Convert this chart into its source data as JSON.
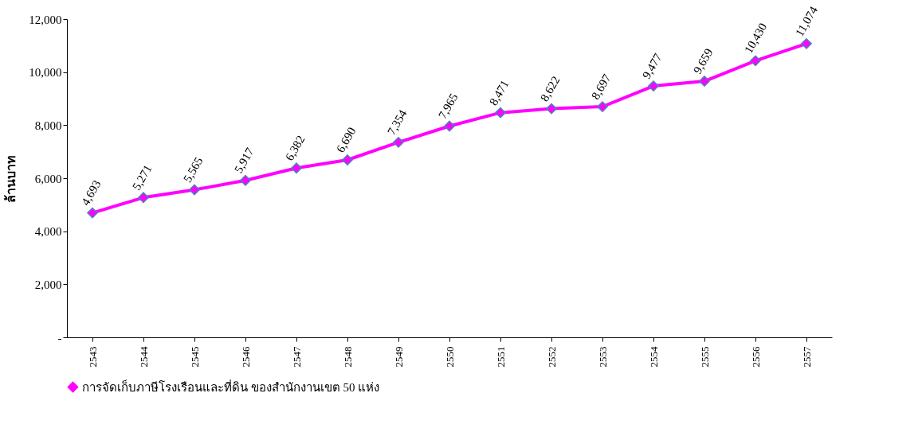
{
  "chart_data": {
    "type": "line",
    "ylabel": "ล้านบาท",
    "categories": [
      "2543",
      "2544",
      "2545",
      "2546",
      "2547",
      "2548",
      "2549",
      "2550",
      "2551",
      "2552",
      "2553",
      "2554",
      "2555",
      "2556",
      "2557"
    ],
    "series": [
      {
        "name": "การจัดเก็บภาษีโรงเรือนและที่ดิน ของสำนักงานเขต 50 แห่ง",
        "color": "#ff00ff",
        "values": [
          4693,
          5271,
          5565,
          5917,
          6382,
          6690,
          7354,
          7965,
          8471,
          8622,
          8697,
          9477,
          9659,
          10430,
          11074
        ],
        "value_labels": [
          "4,693",
          "5,271",
          "5,565",
          "5,917",
          "6,382",
          "6,690",
          "7,354",
          "7,965",
          "8,471",
          "8,622",
          "8,697",
          "9,477",
          "9,659",
          "10,430",
          "11,074"
        ]
      }
    ],
    "ylim": [
      0,
      12000
    ],
    "yticks": [
      {
        "value": 0,
        "label": "-"
      },
      {
        "value": 2000,
        "label": "2,000"
      },
      {
        "value": 4000,
        "label": "4,000"
      },
      {
        "value": 6000,
        "label": "6,000"
      },
      {
        "value": 8000,
        "label": "8,000"
      },
      {
        "value": 10000,
        "label": "10,000"
      },
      {
        "value": 12000,
        "label": "12,000"
      }
    ],
    "marker": "diamond",
    "line_style": "solid",
    "grid": false,
    "legend": "bottom"
  }
}
